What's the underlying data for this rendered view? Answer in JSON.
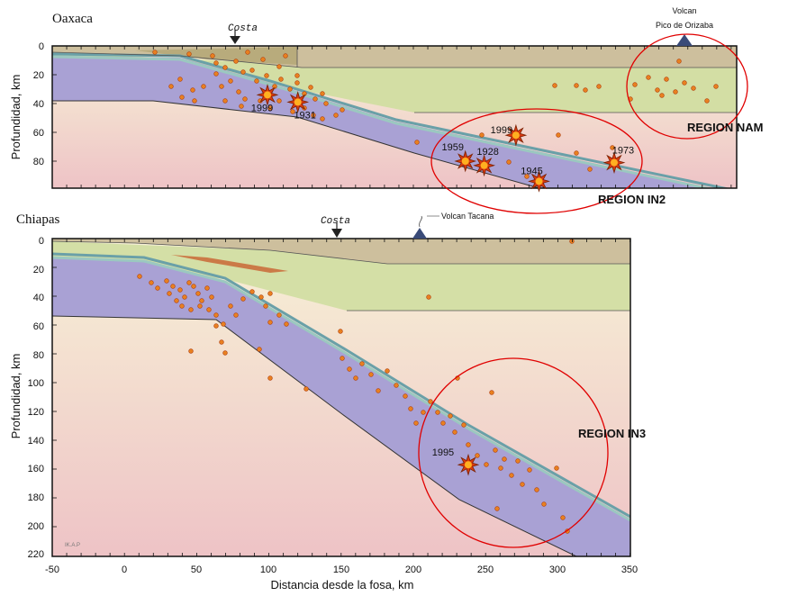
{
  "panels": [
    {
      "title": "Oaxaca",
      "coast_label": "Costa",
      "volcano_label_line1": "Volcan",
      "volcano_label_line2": "Pico de Orizaba",
      "y_ticks": [
        "0",
        "20",
        "40",
        "60",
        "80"
      ],
      "ylabel": "Profundidad, km",
      "x_range_km": [
        -50,
        400
      ],
      "depth_range_km": [
        0,
        100
      ],
      "coast_x_km": 78,
      "volcano_x_km": 324,
      "earthquakes": [
        {
          "year": "1999",
          "x_km": 99,
          "depth_km": 34
        },
        {
          "year": "1931",
          "x_km": 120,
          "depth_km": 39
        },
        {
          "year": "1999",
          "x_km": 271,
          "depth_km": 62
        },
        {
          "year": "1959",
          "x_km": 236,
          "depth_km": 80
        },
        {
          "year": "1928",
          "x_km": 249,
          "depth_km": 83
        },
        {
          "year": "1945",
          "x_km": 287,
          "depth_km": 94
        },
        {
          "year": "1973",
          "x_km": 339,
          "depth_km": 81
        }
      ],
      "regions": [
        {
          "label": "REGION NAM",
          "center_x_km": 338,
          "center_depth_km": 25,
          "r_km": 50
        },
        {
          "label": "REGION IN2",
          "center_x_km": 281,
          "center_depth_km": 80,
          "r_km": 64
        }
      ]
    },
    {
      "title": "Chiapas",
      "coast_label": "Costa",
      "volcano_label": "Volcan Tacana",
      "y_ticks": [
        "0",
        "20",
        "40",
        "60",
        "80",
        "100",
        "120",
        "140",
        "160",
        "180",
        "200",
        "220"
      ],
      "ylabel": "Profundidad, km",
      "x_range_km": [
        -50,
        350
      ],
      "depth_range_km": [
        0,
        220
      ],
      "coast_x_km": 150,
      "volcano_x_km": 207,
      "earthquakes": [
        {
          "year": "1995",
          "x_km": 238,
          "depth_km": 157
        }
      ],
      "regions": [
        {
          "label": "REGION IN3",
          "center_x_km": 262,
          "center_depth_km": 149,
          "r_km": 66
        }
      ]
    }
  ],
  "x_ticks": [
    "-50",
    "0",
    "50",
    "100",
    "150",
    "200",
    "250",
    "300",
    "350"
  ],
  "xlabel": "Distancia desde la fosa, km",
  "credit": "IK.A.P",
  "colors": {
    "mantle_top": "#f6efd0",
    "mantle_bottom": "#eec4c4",
    "slab": "#a8a0d2",
    "crust_upper": "#cfc0a0",
    "crust_lower": "#cfdca0",
    "slab_top_1": "#6aa0a8",
    "slab_top_2": "#9bc8c0",
    "quake": "#e07020",
    "region_circle": "#e00000"
  }
}
